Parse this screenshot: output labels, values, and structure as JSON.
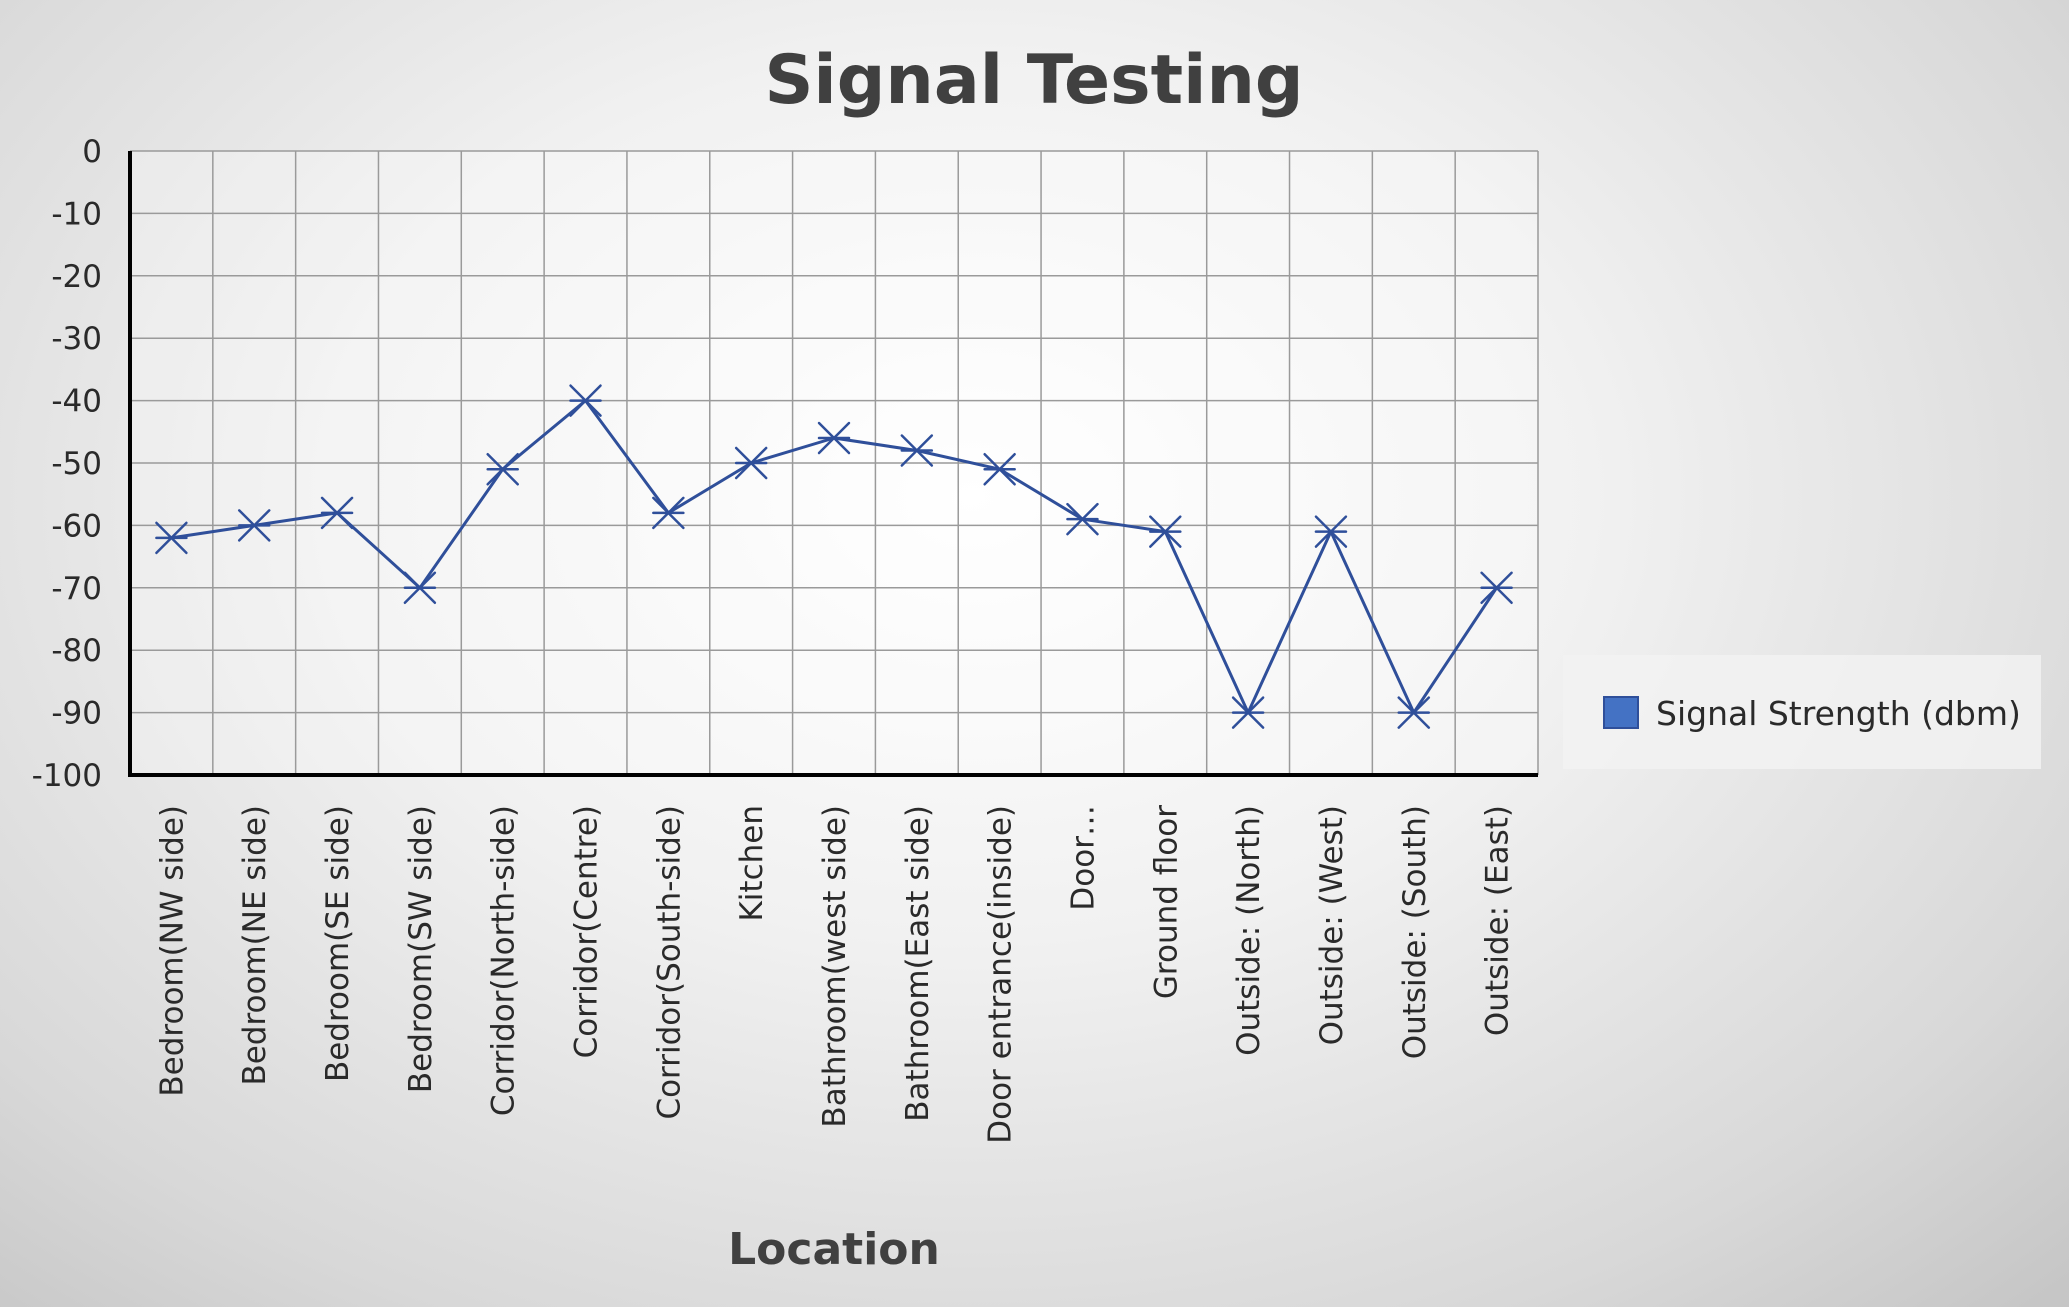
{
  "chart_data": {
    "type": "line",
    "title": "Signal Testing",
    "xlabel": "Location",
    "ylabel": "",
    "ylim": [
      -100,
      0
    ],
    "ytick_step": 10,
    "grid": true,
    "legend_position": "right",
    "categories": [
      "Bedroom(NW side)",
      "Bedroom(NE side)",
      "Bedroom(SE side)",
      "Bedroom(SW side)",
      "Corridor(North-side)",
      "Corridor(Centre)",
      "Corridor(South-side)",
      "Kitchen",
      "Bathroom(west side)",
      "Bathroom(East side)",
      "Door entrance(inside)",
      "Door…",
      "Ground floor",
      "Outside: (North)",
      "Outside: (West)",
      "Outside: (South)",
      "Outside: (East)"
    ],
    "series": [
      {
        "name": "Signal Strength (dbm)",
        "color": "#2F4F9A",
        "marker": "star",
        "values": [
          -62,
          -60,
          -58,
          -70,
          -51,
          -40,
          -58,
          -50,
          -46,
          -48,
          -51,
          -59,
          -61,
          -90,
          -61,
          -90,
          -70
        ]
      }
    ],
    "colors": {
      "legend_swatch": "#4472C4",
      "grid": "#9a9a9a",
      "axis": "#000000"
    }
  }
}
